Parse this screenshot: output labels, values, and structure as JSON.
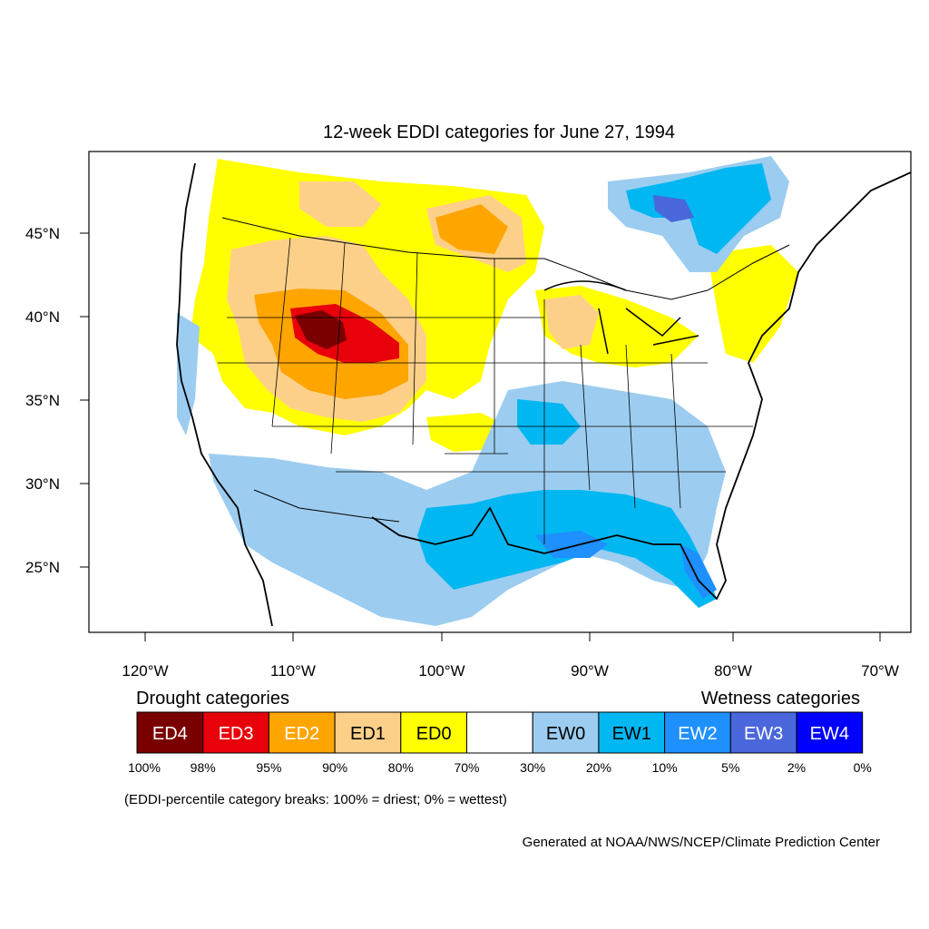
{
  "map": {
    "title": "12-week EDDI categories for June 27, 1994",
    "lat_labels": [
      "45°N",
      "40°N",
      "35°N",
      "30°N",
      "25°N"
    ],
    "lon_labels": [
      "120°W",
      "110°W",
      "100°W",
      "90°W",
      "80°W",
      "70°W"
    ]
  },
  "legend": {
    "drought_heading": "Drought categories",
    "wetness_heading": "Wetness categories",
    "categories": [
      {
        "label": "ED4",
        "color": "#7a0000"
      },
      {
        "label": "ED3",
        "color": "#e8000b"
      },
      {
        "label": "ED2",
        "color": "#ffa500"
      },
      {
        "label": "ED1",
        "color": "#fdd08a"
      },
      {
        "label": "ED0",
        "color": "#ffff00"
      },
      {
        "label": "",
        "color": "#ffffff"
      },
      {
        "label": "EW0",
        "color": "#9ccdf0"
      },
      {
        "label": "EW1",
        "color": "#00b7f2"
      },
      {
        "label": "EW2",
        "color": "#1e90ff"
      },
      {
        "label": "EW3",
        "color": "#4a67dc"
      },
      {
        "label": "EW4",
        "color": "#0000ff"
      }
    ],
    "breaks": [
      "100%",
      "98%",
      "95%",
      "90%",
      "80%",
      "70%",
      "30%",
      "20%",
      "10%",
      "5%",
      "2%",
      "0%"
    ],
    "note": "(EDDI-percentile category breaks: 100% = driest; 0% = wettest)"
  },
  "credit": "Generated at NOAA/NWS/NCEP/Climate Prediction Center"
}
